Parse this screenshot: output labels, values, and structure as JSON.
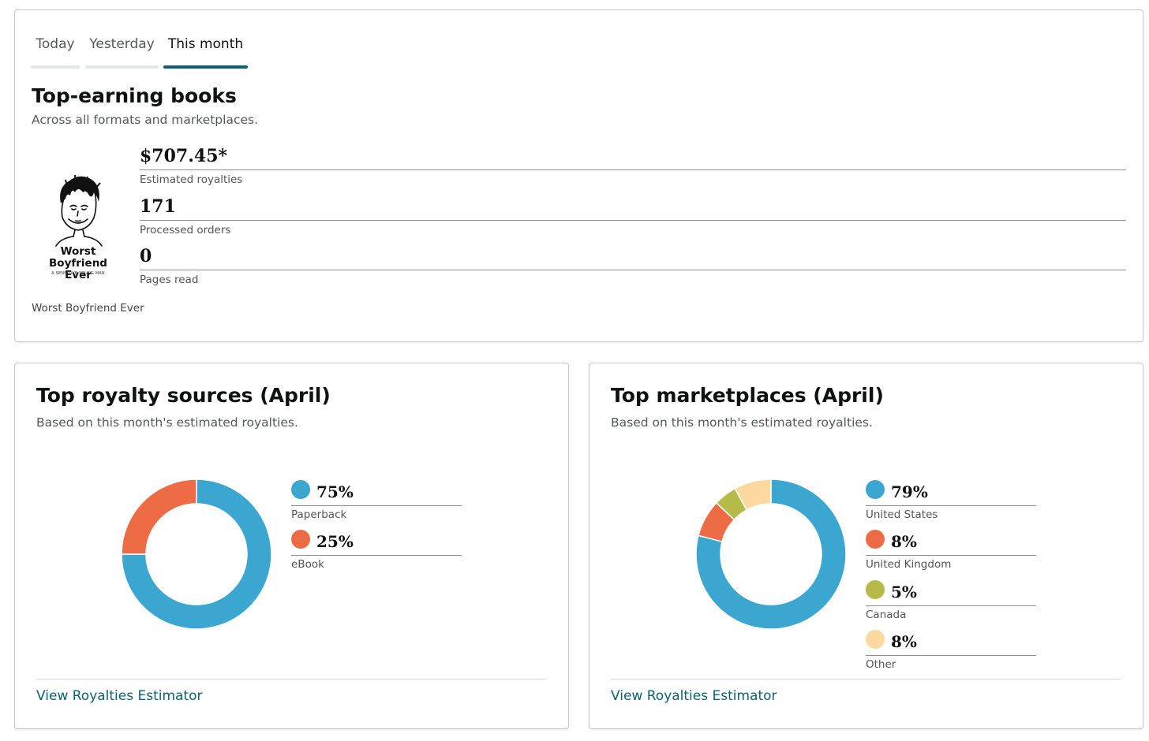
{
  "tabs": [
    {
      "label": "Today",
      "active": false
    },
    {
      "label": "Yesterday",
      "active": false
    },
    {
      "label": "This month",
      "active": true
    }
  ],
  "top_books": {
    "title": "Top-earning books",
    "subtitle": "Across all formats and marketplaces.",
    "book": {
      "cover_title": "Worst Boyfriend Ever",
      "cover_subtitle": "A SENSITIVE YOUNG MAN",
      "name": "Worst Boyfriend Ever"
    },
    "metrics": [
      {
        "value": "$707.45*",
        "label": "Estimated royalties"
      },
      {
        "value": "171",
        "label": "Processed orders"
      },
      {
        "value": "0",
        "label": "Pages read"
      }
    ]
  },
  "royalty_sources": {
    "title": "Top royalty sources (April)",
    "subtitle": "Based on this month's estimated royalties.",
    "link": "View Royalties Estimator"
  },
  "marketplaces": {
    "title": "Top marketplaces (April)",
    "subtitle": "Based on this month's estimated royalties.",
    "link": "View Royalties Estimator"
  },
  "chart_data": [
    {
      "type": "pie",
      "title": "Top royalty sources (April)",
      "categories": [
        "Paperback",
        "eBook"
      ],
      "values": [
        75,
        25
      ],
      "labels": [
        "75%",
        "25%"
      ],
      "colors": [
        "#3ba6d0",
        "#ee6c45"
      ]
    },
    {
      "type": "pie",
      "title": "Top marketplaces (April)",
      "categories": [
        "United States",
        "United Kingdom",
        "Canada",
        "Other"
      ],
      "values": [
        79,
        8,
        5,
        8
      ],
      "labels": [
        "79%",
        "8%",
        "5%",
        "8%"
      ],
      "colors": [
        "#3ba6d0",
        "#ee6c45",
        "#b5bb46",
        "#fdd9a0"
      ]
    }
  ]
}
